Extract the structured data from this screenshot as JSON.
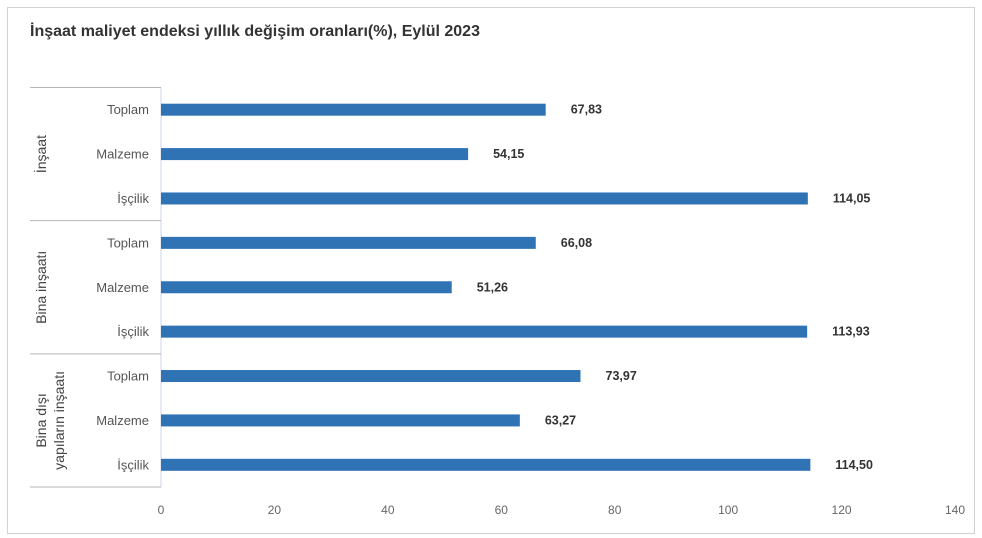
{
  "chart_data": {
    "type": "bar",
    "orientation": "horizontal",
    "title": "İnşaat maliyet endeksi yıllık değişim oranları(%), Eylül 2023",
    "xlim": [
      0,
      140
    ],
    "xticks": [
      0,
      20,
      40,
      60,
      80,
      100,
      120,
      140
    ],
    "grid": false,
    "legend": "none",
    "bar_color": "#2f73b5",
    "groups": [
      {
        "label_lines": [
          "İnşaat"
        ],
        "categories": [
          "Toplam",
          "Malzeme",
          "İşçilik"
        ],
        "values": [
          67.83,
          54.15,
          114.05
        ],
        "value_labels": [
          "67,83",
          "54,15",
          "114,05"
        ]
      },
      {
        "label_lines": [
          "Bina inşaatı"
        ],
        "categories": [
          "Toplam",
          "Malzeme",
          "İşçilik"
        ],
        "values": [
          66.08,
          51.26,
          113.93
        ],
        "value_labels": [
          "66,08",
          "51,26",
          "113,93"
        ]
      },
      {
        "label_lines": [
          "Bina dışı",
          "yapıların inşaatı"
        ],
        "categories": [
          "Toplam",
          "Malzeme",
          "İşçilik"
        ],
        "values": [
          73.97,
          63.27,
          114.5
        ],
        "value_labels": [
          "73,97",
          "63,27",
          "114,50"
        ]
      }
    ]
  }
}
